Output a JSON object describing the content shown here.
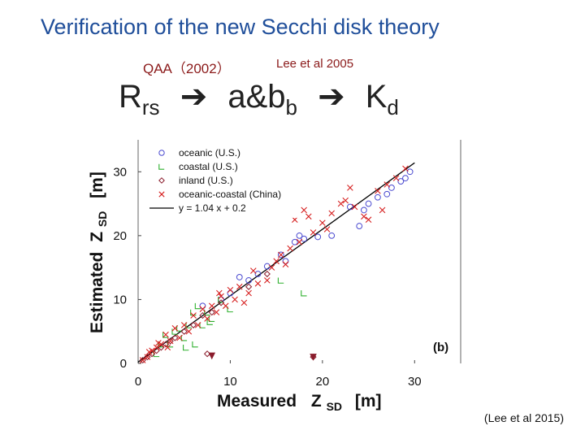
{
  "slide": {
    "title": "Verification of the new Secchi disk theory",
    "qaa_label": "QAA（2002）",
    "lee_label": "Lee et al 2005",
    "chain": {
      "r": "R",
      "r_sub": "rs",
      "ab": "a&b",
      "ab_sub": "b",
      "k": "K",
      "k_sub": "d"
    },
    "citation": "(Lee et al 2015)"
  },
  "chart_data": {
    "type": "scatter",
    "panel_label": "(b)",
    "xlabel": "Measured",
    "xlabel_sym": "Z",
    "xlabel_sub": "SD",
    "xlabel_unit": "[m]",
    "ylabel": "Estimated",
    "ylabel_sym": "Z",
    "ylabel_sub": "SD",
    "ylabel_unit": "[m]",
    "xlim": [
      0,
      35
    ],
    "ylim": [
      0,
      35
    ],
    "xticks": [
      0,
      10,
      20,
      30
    ],
    "yticks": [
      0,
      10,
      20,
      30
    ],
    "fit_line": {
      "slope": 1.04,
      "intercept": 0.2,
      "x_range": [
        0,
        30
      ],
      "color": "#000000"
    },
    "series": [
      {
        "name": "oceanic (U.S.)",
        "marker": "circle",
        "color": "#4a4ad0",
        "x": [
          29.5,
          29,
          28.5,
          27.5,
          27,
          26,
          25,
          24.5,
          24,
          23,
          21,
          19.5,
          18,
          17.5,
          17,
          16,
          15.5,
          14,
          13,
          12,
          11,
          10,
          9,
          7
        ],
        "y": [
          30,
          29,
          28.5,
          27.5,
          26.5,
          26,
          25,
          24,
          21.5,
          24.5,
          20,
          19.8,
          19.5,
          20,
          19,
          16,
          17,
          15.2,
          14,
          13,
          13.5,
          11,
          10,
          9
        ]
      },
      {
        "name": "coastal (U.S.)",
        "marker": "square-open",
        "color": "#2fb02f",
        "x": [
          18,
          15.5,
          10,
          9,
          8,
          7.5,
          7,
          6.5,
          6,
          5.5,
          5,
          4.5,
          4,
          3.5,
          3,
          2.5,
          2,
          7.8,
          6.2,
          5.2
        ],
        "y": [
          11,
          13,
          8.5,
          10,
          7,
          8,
          6,
          9,
          8,
          6,
          4,
          5.5,
          5,
          3,
          4.5,
          3,
          1.5,
          6.5,
          3,
          2.5
        ]
      },
      {
        "name": "inland (U.S.)",
        "marker": "diamond",
        "color": "#8a1c2c",
        "x": [
          14,
          12,
          9,
          8,
          7,
          6,
          5,
          4,
          3.5,
          3,
          2.5,
          2,
          1.5,
          1,
          0.5,
          7.5,
          19
        ],
        "y": [
          14,
          12,
          9.5,
          8,
          7.5,
          6,
          5,
          4,
          3.5,
          3,
          2.5,
          2,
          1.5,
          1,
          0.5,
          1.5,
          1
        ]
      },
      {
        "name": "oceanic-coastal (China)",
        "marker": "x",
        "color": "#d62020",
        "x": [
          29,
          28,
          27,
          26.5,
          26,
          25,
          24.5,
          23.5,
          23,
          22,
          21,
          20,
          19,
          18,
          17.5,
          17,
          16,
          15.5,
          15,
          14.5,
          14,
          13,
          12.5,
          12,
          11,
          10.5,
          10,
          9.5,
          9,
          8.5,
          8,
          7.5,
          7,
          6.5,
          6,
          5.5,
          5,
          4.5,
          4,
          3.5,
          3,
          2.5,
          2,
          1.5,
          1,
          0.5,
          22.5,
          20.5,
          18.5,
          16.5,
          11.5,
          8.8,
          3.2,
          2.2,
          1.2
        ],
        "y": [
          30.5,
          29,
          28,
          24,
          27,
          22.5,
          23,
          24.5,
          27.5,
          25,
          23.5,
          22,
          20.5,
          24,
          19,
          22.5,
          15.5,
          17,
          16,
          15,
          13,
          12.5,
          14.5,
          11,
          12,
          10,
          11.5,
          9,
          10.5,
          8,
          9,
          7,
          8.5,
          6,
          7.5,
          5,
          6,
          4,
          5.5,
          3.5,
          4.5,
          3,
          2.5,
          2,
          1,
          0.5,
          25.5,
          21,
          23,
          18,
          9.5,
          11,
          2.5,
          3.2,
          1.8
        ]
      }
    ],
    "outliers": {
      "marker": "triangle-down",
      "color": "#8a1c2c",
      "x": [
        8,
        19
      ],
      "y": [
        1.2,
        1.0
      ]
    }
  }
}
